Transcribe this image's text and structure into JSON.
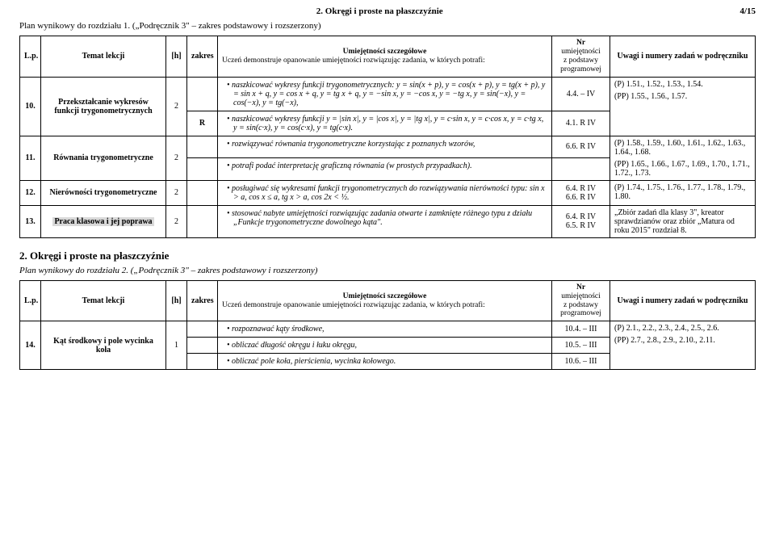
{
  "header": {
    "title": "2. Okręgi i proste na płaszczyźnie",
    "page": "4/15"
  },
  "plan1": "Plan wynikowy do rozdziału 1. („Podręcznik 3\" – zakres podstawowy i rozszerzony)",
  "section2": "2. Okręgi i proste na płaszczyźnie",
  "plan2": "Plan wynikowy do rozdziału 2. („Podręcznik 3\" – zakres podstawowy i rozszerzony)",
  "cols": {
    "lp": "L.p.",
    "temat": "Temat lekcji",
    "h": "[h]",
    "zakres": "zakres",
    "umie_title": "Umiejętności szczegółowe",
    "umie_sub": "Uczeń demonstruje opanowanie umiejętności rozwiązując zadania, w których potrafi:",
    "nr_title": "Nr",
    "nr_sub1": "umiejętności",
    "nr_sub2": "z podstawy",
    "nr_sub3": "programowej",
    "uwagi": "Uwagi i numery zadań w podręczniku"
  },
  "rows": [
    {
      "lp": "10.",
      "temat": "Przekształcanie wykresów funkcji trygonometrycznych",
      "h": "2",
      "skills": [
        {
          "zakres": "",
          "text": "naszkicować wykresy funkcji trygonometrycznych: y = sin(x + p), y = cos(x + p), y = tg(x + p), y = sin x + q, y = cos x + q, y = tg x + q, y = −sin x, y = −cos x, y = −tg x, y = sin(−x), y = cos(−x), y = tg(−x),",
          "nr": "4.4. – IV"
        },
        {
          "zakres": "R",
          "text": "naszkicować wykresy funkcji y = |sin x|, y = |cos x|, y = |tg x|, y = c·sin x, y = c·cos x, y = c·tg x, y = sin(c·x), y = cos(c·x), y = tg(c·x).",
          "nr": "4.1. R IV"
        }
      ],
      "uwagi_p": "(P) 1.51., 1.52., 1.53., 1.54.",
      "uwagi_pp": "(PP) 1.55., 1.56., 1.57."
    },
    {
      "lp": "11.",
      "temat": "Równania trygonometryczne",
      "h": "2",
      "skills": [
        {
          "zakres": "",
          "text": "rozwiązywać równania trygonometryczne korzystając z poznanych wzorów,",
          "nr": "6.6. R IV"
        },
        {
          "zakres": "",
          "text": "potrafi podać interpretację graficzną równania (w prostych przypadkach).",
          "nr": ""
        }
      ],
      "uwagi_p": "(P) 1.58., 1.59., 1.60., 1.61., 1.62., 1.63., 1.64., 1.68.",
      "uwagi_pp": "(PP) 1.65., 1.66., 1.67., 1.69., 1.70., 1.71., 1.72., 1.73."
    },
    {
      "lp": "12.",
      "temat": "Nierówności trygonometryczne",
      "h": "2",
      "skills": [
        {
          "zakres": "",
          "text": "posługiwać się wykresami funkcji trygonometrycznych do rozwiązywania nierówności typu: sin x > a, cos x ≤ a, tg x > a, cos 2x < ½.",
          "nr": "6.4. R IV\n6.6. R IV"
        }
      ],
      "uwagi_p": "(P) 1.74., 1.75., 1.76., 1.77., 1.78., 1.79., 1.80.",
      "uwagi_pp": ""
    },
    {
      "lp": "13.",
      "temat": "Praca klasowa i jej poprawa",
      "temat_grey": true,
      "h": "2",
      "skills": [
        {
          "zakres": "",
          "text": "stosować nabyte umiejętności rozwiązując zadania otwarte i zamknięte różnego typu z działu „Funkcje trygonometryczne dowolnego kąta\".",
          "nr": "6.4. R IV\n6.5. R IV"
        }
      ],
      "uwagi_p": "„Zbiór zadań dla klasy 3\", kreator sprawdzianów oraz zbiór „Matura od roku 2015\" rozdział 8.",
      "uwagi_pp": ""
    }
  ],
  "rows2": [
    {
      "lp": "14.",
      "temat": "Kąt środkowy i pole wycinka koła",
      "h": "1",
      "skills": [
        {
          "zakres": "",
          "text": "rozpoznawać kąty środkowe,",
          "nr": "10.4. – III"
        },
        {
          "zakres": "",
          "text": "obliczać długość okręgu i łuku okręgu,",
          "nr": "10.5. – III"
        },
        {
          "zakres": "",
          "text": "obliczać pole koła, pierścienia, wycinka kołowego.",
          "nr": "10.6. – III"
        }
      ],
      "uwagi_p": "(P) 2.1., 2.2., 2.3., 2.4., 2.5., 2.6.",
      "uwagi_pp": "(PP) 2.7., 2.8., 2.9., 2.10., 2.11."
    }
  ]
}
